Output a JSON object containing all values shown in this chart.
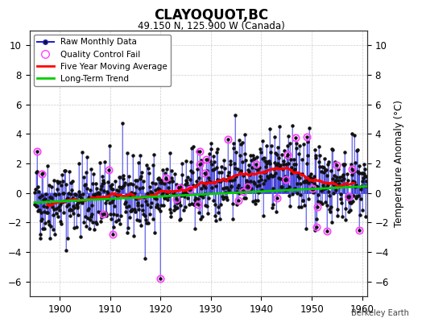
{
  "title": "CLAYOQUOT,BC",
  "subtitle": "49.150 N, 125.900 W (Canada)",
  "ylabel": "Temperature Anomaly (°C)",
  "credit": "Berkeley Earth",
  "year_start": 1895,
  "year_end": 1961,
  "ylim": [
    -7,
    11
  ],
  "yticks": [
    -6,
    -4,
    -2,
    0,
    2,
    4,
    6,
    8,
    10
  ],
  "background_color": "#ffffff",
  "plot_bg": "#ffffff",
  "raw_line_color": "#aaaaff",
  "raw_line_color2": "#2222cc",
  "ma_color": "#ff0000",
  "trend_color": "#00cc00",
  "qc_color": "#ff44ff",
  "dot_color": "#111111",
  "grid_color": "#cccccc"
}
